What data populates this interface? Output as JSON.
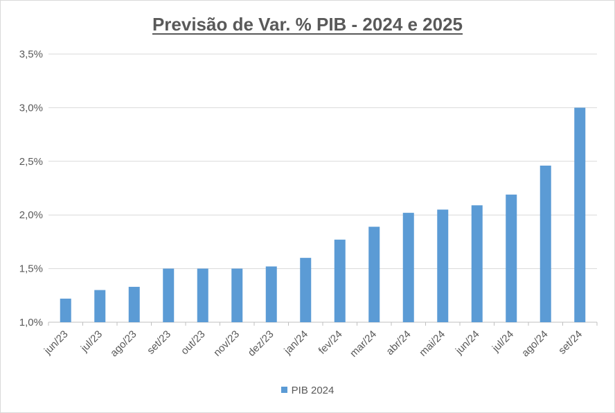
{
  "chart_data": {
    "type": "bar",
    "title": "Previsão de Var. % PIB - 2024 e 2025",
    "xlabel": "",
    "ylabel": "",
    "categories": [
      "jun/23",
      "jul/23",
      "ago/23",
      "set/23",
      "out/23",
      "nov/23",
      "dez/23",
      "jan/24",
      "fev/24",
      "mar/24",
      "abr/24",
      "mai/24",
      "jun/24",
      "jul/24",
      "ago/24",
      "set/24"
    ],
    "series": [
      {
        "name": "PIB 2024",
        "values": [
          1.22,
          1.3,
          1.33,
          1.5,
          1.5,
          1.5,
          1.52,
          1.6,
          1.77,
          1.89,
          2.02,
          2.05,
          2.09,
          2.19,
          2.46,
          3.0
        ],
        "color": "#5b9bd5"
      }
    ],
    "ylim": [
      1.0,
      3.5
    ],
    "yticks": [
      "1,0%",
      "1,5%",
      "2,0%",
      "2,5%",
      "3,0%",
      "3,5%"
    ],
    "grid": true,
    "legend_position": "bottom"
  }
}
